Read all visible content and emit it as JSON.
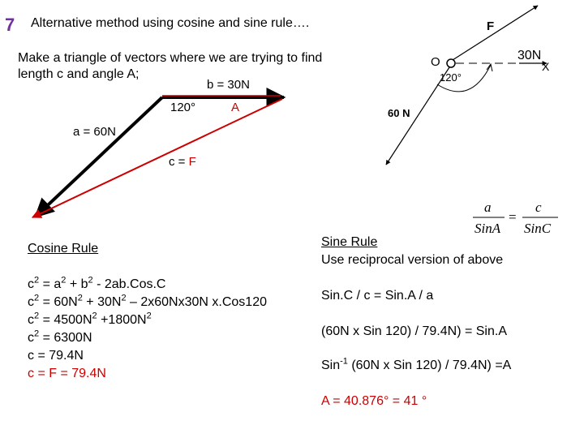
{
  "slide": {
    "number": "7",
    "title": "Alternative method using cosine and sine rule….",
    "intro_line1": "Make a triangle of vectors where we are trying to find",
    "intro_line2": "length c and angle A;"
  },
  "triangle": {
    "side_b": "b = 30N",
    "side_a": "a = 60N",
    "side_c_prefix": "c = ",
    "side_c_var": "F",
    "angle_label": "120°",
    "angle_A": "A"
  },
  "inset": {
    "force_label": "F",
    "force_30": "30N",
    "origin": "O",
    "axis": "X",
    "angle": "120°",
    "force_60": "60 N"
  },
  "formula": {
    "top_left": "a",
    "bottom_left": "SinA",
    "equals": "=",
    "top_right": "c",
    "bottom_right": "SinC"
  },
  "cosine": {
    "heading": "Cosine Rule",
    "lines": [
      {
        "a": "c",
        "b": "2",
        "c": " = a",
        "d": "2",
        "e": " + b",
        "f": "2",
        "g": " - 2ab.Cos.C"
      },
      {
        "a": "c",
        "b": "2",
        "c": " = 60N",
        "d": "2",
        "e": " + 30N",
        "f": "2",
        "g": " – 2x60Nx30N x.Cos120"
      },
      {
        "a": "c",
        "b": "2",
        "c": " = 4500N",
        "d": "2",
        "e": " +1800N",
        "f": "2",
        "g": ""
      },
      {
        "a": "c",
        "b": "2",
        "c": " = 6300N",
        "d": "",
        "e": "",
        "f": "",
        "g": ""
      }
    ],
    "line5": "c = 79.4N",
    "result": "c = F = 79.4N"
  },
  "sine": {
    "heading": "Sine Rule",
    "subheading": "Use reciprocal version  of above",
    "line1": "Sin.C / c = Sin.A / a",
    "line2": "(60N x Sin 120) / 79.4N) = Sin.A",
    "line3_pre": "Sin",
    "line3_sup": "-1",
    "line3_post": " (60N x Sin 120) / 79.4N) =A",
    "result": "A = 40.876°  = 41 °"
  },
  "colors": {
    "accent_red": "#cc0000",
    "slide_number": "#7030a0"
  }
}
